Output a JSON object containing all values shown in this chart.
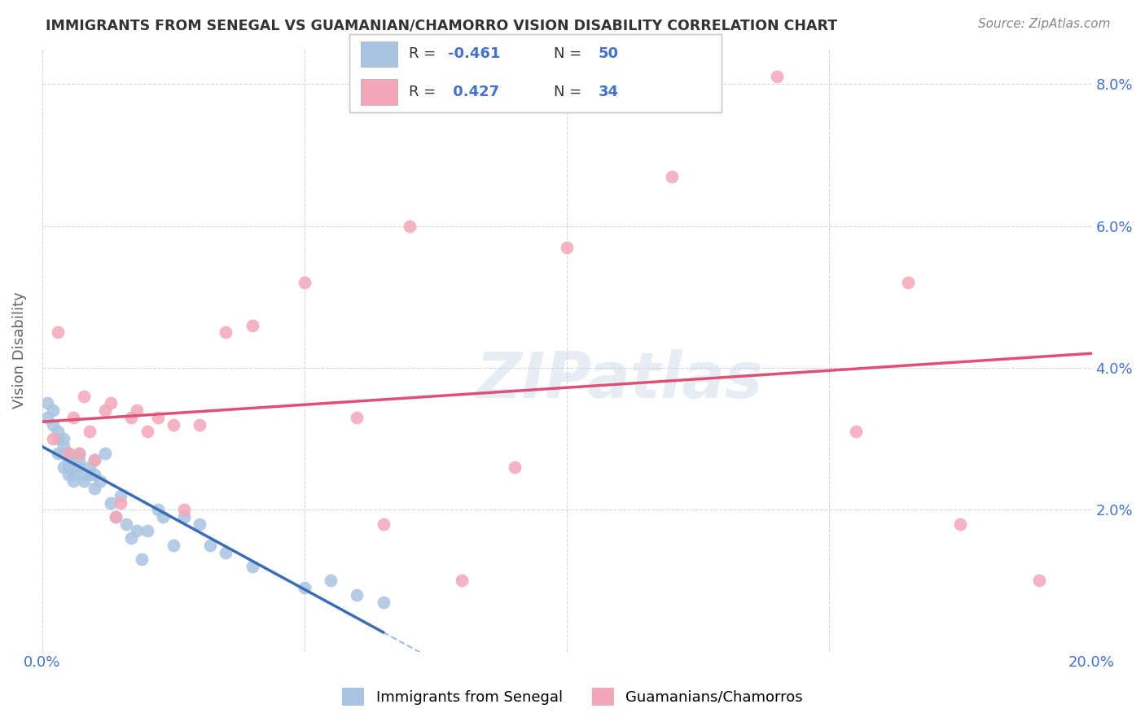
{
  "title": "IMMIGRANTS FROM SENEGAL VS GUAMANIAN/CHAMORRO VISION DISABILITY CORRELATION CHART",
  "source": "Source: ZipAtlas.com",
  "ylabel": "Vision Disability",
  "xlim": [
    0.0,
    0.2
  ],
  "ylim": [
    0.0,
    0.085
  ],
  "x_tick_positions": [
    0.0,
    0.05,
    0.1,
    0.15,
    0.2
  ],
  "x_tick_labels": [
    "0.0%",
    "",
    "",
    "",
    "20.0%"
  ],
  "y_tick_positions": [
    0.0,
    0.02,
    0.04,
    0.06,
    0.08
  ],
  "y_tick_labels": [
    "",
    "2.0%",
    "4.0%",
    "6.0%",
    "8.0%"
  ],
  "blue_R": "-0.461",
  "blue_N": "50",
  "pink_R": "0.427",
  "pink_N": "34",
  "blue_scatter_color": "#a8c4e0",
  "pink_scatter_color": "#f4a7b9",
  "blue_line_color": "#3b6db5",
  "pink_line_color": "#e05075",
  "watermark": "ZIPatlas",
  "legend_label1": "Immigrants from Senegal",
  "legend_label2": "Guamanians/Chamorros",
  "R_color": "#4472c4",
  "N_color": "#4472c4",
  "title_color": "#333333",
  "source_color": "#888888",
  "grid_color": "#d0d8e8",
  "ylabel_color": "#666666",
  "xtick_color": "#4472c4",
  "ytick_color": "#4472c4",
  "blue_x": [
    0.001,
    0.001,
    0.002,
    0.002,
    0.003,
    0.003,
    0.003,
    0.004,
    0.004,
    0.004,
    0.004,
    0.005,
    0.005,
    0.005,
    0.005,
    0.006,
    0.006,
    0.006,
    0.007,
    0.007,
    0.007,
    0.008,
    0.008,
    0.009,
    0.009,
    0.01,
    0.01,
    0.01,
    0.011,
    0.012,
    0.013,
    0.014,
    0.015,
    0.016,
    0.017,
    0.018,
    0.019,
    0.02,
    0.022,
    0.023,
    0.025,
    0.027,
    0.03,
    0.032,
    0.035,
    0.04,
    0.05,
    0.055,
    0.06,
    0.065
  ],
  "blue_y": [
    0.035,
    0.033,
    0.032,
    0.034,
    0.03,
    0.028,
    0.031,
    0.026,
    0.028,
    0.03,
    0.029,
    0.025,
    0.027,
    0.028,
    0.026,
    0.024,
    0.026,
    0.025,
    0.026,
    0.028,
    0.027,
    0.025,
    0.024,
    0.025,
    0.026,
    0.023,
    0.025,
    0.027,
    0.024,
    0.028,
    0.021,
    0.019,
    0.022,
    0.018,
    0.016,
    0.017,
    0.013,
    0.017,
    0.02,
    0.019,
    0.015,
    0.019,
    0.018,
    0.015,
    0.014,
    0.012,
    0.009,
    0.01,
    0.008,
    0.007
  ],
  "pink_x": [
    0.002,
    0.003,
    0.005,
    0.006,
    0.007,
    0.008,
    0.009,
    0.01,
    0.012,
    0.013,
    0.014,
    0.015,
    0.017,
    0.018,
    0.02,
    0.022,
    0.025,
    0.027,
    0.03,
    0.035,
    0.04,
    0.05,
    0.06,
    0.065,
    0.07,
    0.08,
    0.09,
    0.1,
    0.12,
    0.14,
    0.155,
    0.165,
    0.175,
    0.19
  ],
  "pink_y": [
    0.03,
    0.045,
    0.028,
    0.033,
    0.028,
    0.036,
    0.031,
    0.027,
    0.034,
    0.035,
    0.019,
    0.021,
    0.033,
    0.034,
    0.031,
    0.033,
    0.032,
    0.02,
    0.032,
    0.045,
    0.046,
    0.052,
    0.033,
    0.018,
    0.06,
    0.01,
    0.026,
    0.057,
    0.067,
    0.081,
    0.031,
    0.052,
    0.018,
    0.01
  ]
}
